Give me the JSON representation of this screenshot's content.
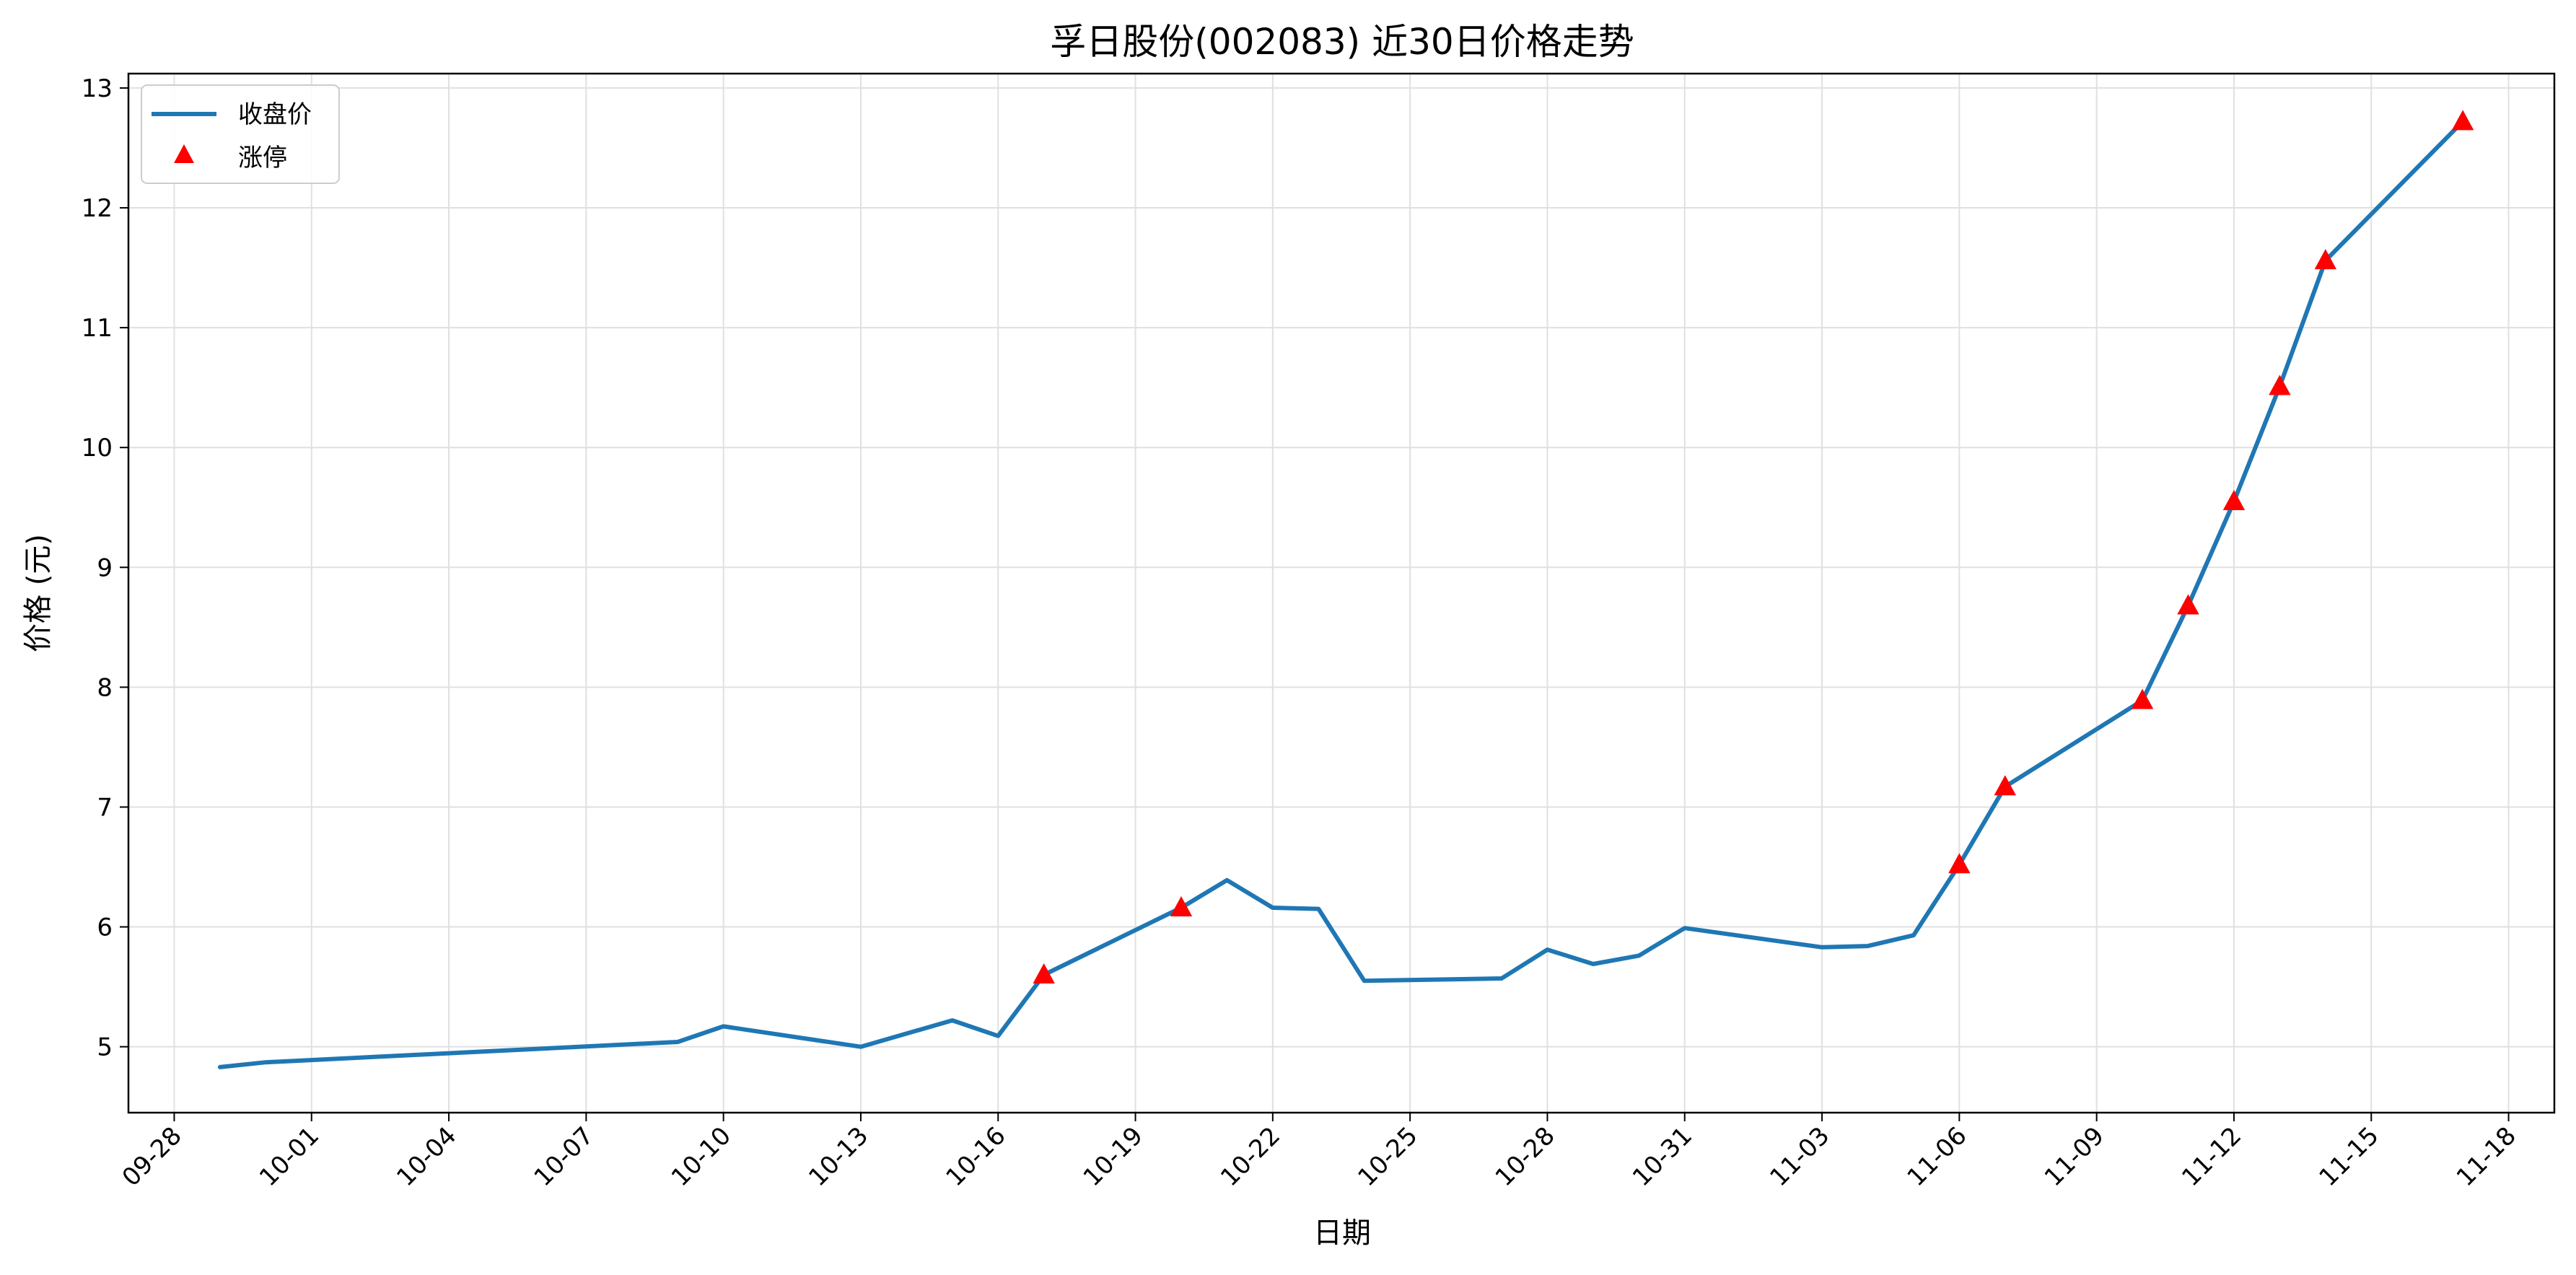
{
  "colors": {
    "line": "#1f77b4",
    "limit_up": "#ff0000",
    "grid": "#e0e0e0"
  },
  "chart_data": {
    "type": "line",
    "title": "孚日股份(002083) 近30日价格走势",
    "xlabel": "日期",
    "ylabel": "价格 (元)",
    "xlim": [
      "09-27",
      "11-19"
    ],
    "ylim": [
      4.45,
      13.12
    ],
    "grid": true,
    "legend_position": "top-left",
    "x_ticks": [
      "09-28",
      "10-01",
      "10-04",
      "10-07",
      "10-10",
      "10-13",
      "10-16",
      "10-19",
      "10-22",
      "10-25",
      "10-28",
      "10-31",
      "11-03",
      "11-06",
      "11-09",
      "11-12",
      "11-15",
      "11-18"
    ],
    "y_ticks": [
      5,
      6,
      7,
      8,
      9,
      10,
      11,
      12,
      13
    ],
    "series": [
      {
        "name": "收盘价",
        "kind": "line",
        "points": [
          {
            "x": "09-29",
            "y": 4.83
          },
          {
            "x": "09-30",
            "y": 4.87
          },
          {
            "x": "10-09",
            "y": 5.04
          },
          {
            "x": "10-10",
            "y": 5.17
          },
          {
            "x": "10-13",
            "y": 5.0
          },
          {
            "x": "10-15",
            "y": 5.22
          },
          {
            "x": "10-16",
            "y": 5.09
          },
          {
            "x": "10-17",
            "y": 5.6
          },
          {
            "x": "10-20",
            "y": 6.16
          },
          {
            "x": "10-21",
            "y": 6.39
          },
          {
            "x": "10-22",
            "y": 6.16
          },
          {
            "x": "10-23",
            "y": 6.15
          },
          {
            "x": "10-24",
            "y": 5.55
          },
          {
            "x": "10-27",
            "y": 5.57
          },
          {
            "x": "10-28",
            "y": 5.81
          },
          {
            "x": "10-29",
            "y": 5.69
          },
          {
            "x": "10-30",
            "y": 5.76
          },
          {
            "x": "10-31",
            "y": 5.99
          },
          {
            "x": "11-03",
            "y": 5.83
          },
          {
            "x": "11-04",
            "y": 5.84
          },
          {
            "x": "11-05",
            "y": 5.93
          },
          {
            "x": "11-06",
            "y": 6.52
          },
          {
            "x": "11-07",
            "y": 7.17
          },
          {
            "x": "11-10",
            "y": 7.89
          },
          {
            "x": "11-11",
            "y": 8.68
          },
          {
            "x": "11-12",
            "y": 9.55
          },
          {
            "x": "11-13",
            "y": 10.51
          },
          {
            "x": "11-14",
            "y": 11.56
          },
          {
            "x": "11-17",
            "y": 12.72
          }
        ]
      },
      {
        "name": "涨停",
        "kind": "scatter",
        "marker": "triangle",
        "points": [
          {
            "x": "10-17",
            "y": 5.6
          },
          {
            "x": "10-20",
            "y": 6.16
          },
          {
            "x": "11-06",
            "y": 6.52
          },
          {
            "x": "11-07",
            "y": 7.17
          },
          {
            "x": "11-10",
            "y": 7.89
          },
          {
            "x": "11-11",
            "y": 8.68
          },
          {
            "x": "11-12",
            "y": 9.55
          },
          {
            "x": "11-13",
            "y": 10.51
          },
          {
            "x": "11-14",
            "y": 11.56
          },
          {
            "x": "11-17",
            "y": 12.72
          }
        ]
      }
    ]
  }
}
